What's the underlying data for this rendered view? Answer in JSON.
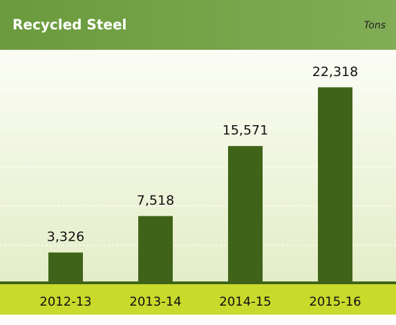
{
  "chart_data": {
    "type": "bar",
    "title": "Recycled Steel",
    "unit": "Tons",
    "categories": [
      "2012-13",
      "2013-14",
      "2014-15",
      "2015-16"
    ],
    "values": [
      3326,
      7518,
      15571,
      22318
    ],
    "value_labels": [
      "3,326",
      "7,518",
      "15,571",
      "22,318"
    ],
    "color": "#3f6419",
    "ylim": [
      0,
      26000
    ]
  }
}
